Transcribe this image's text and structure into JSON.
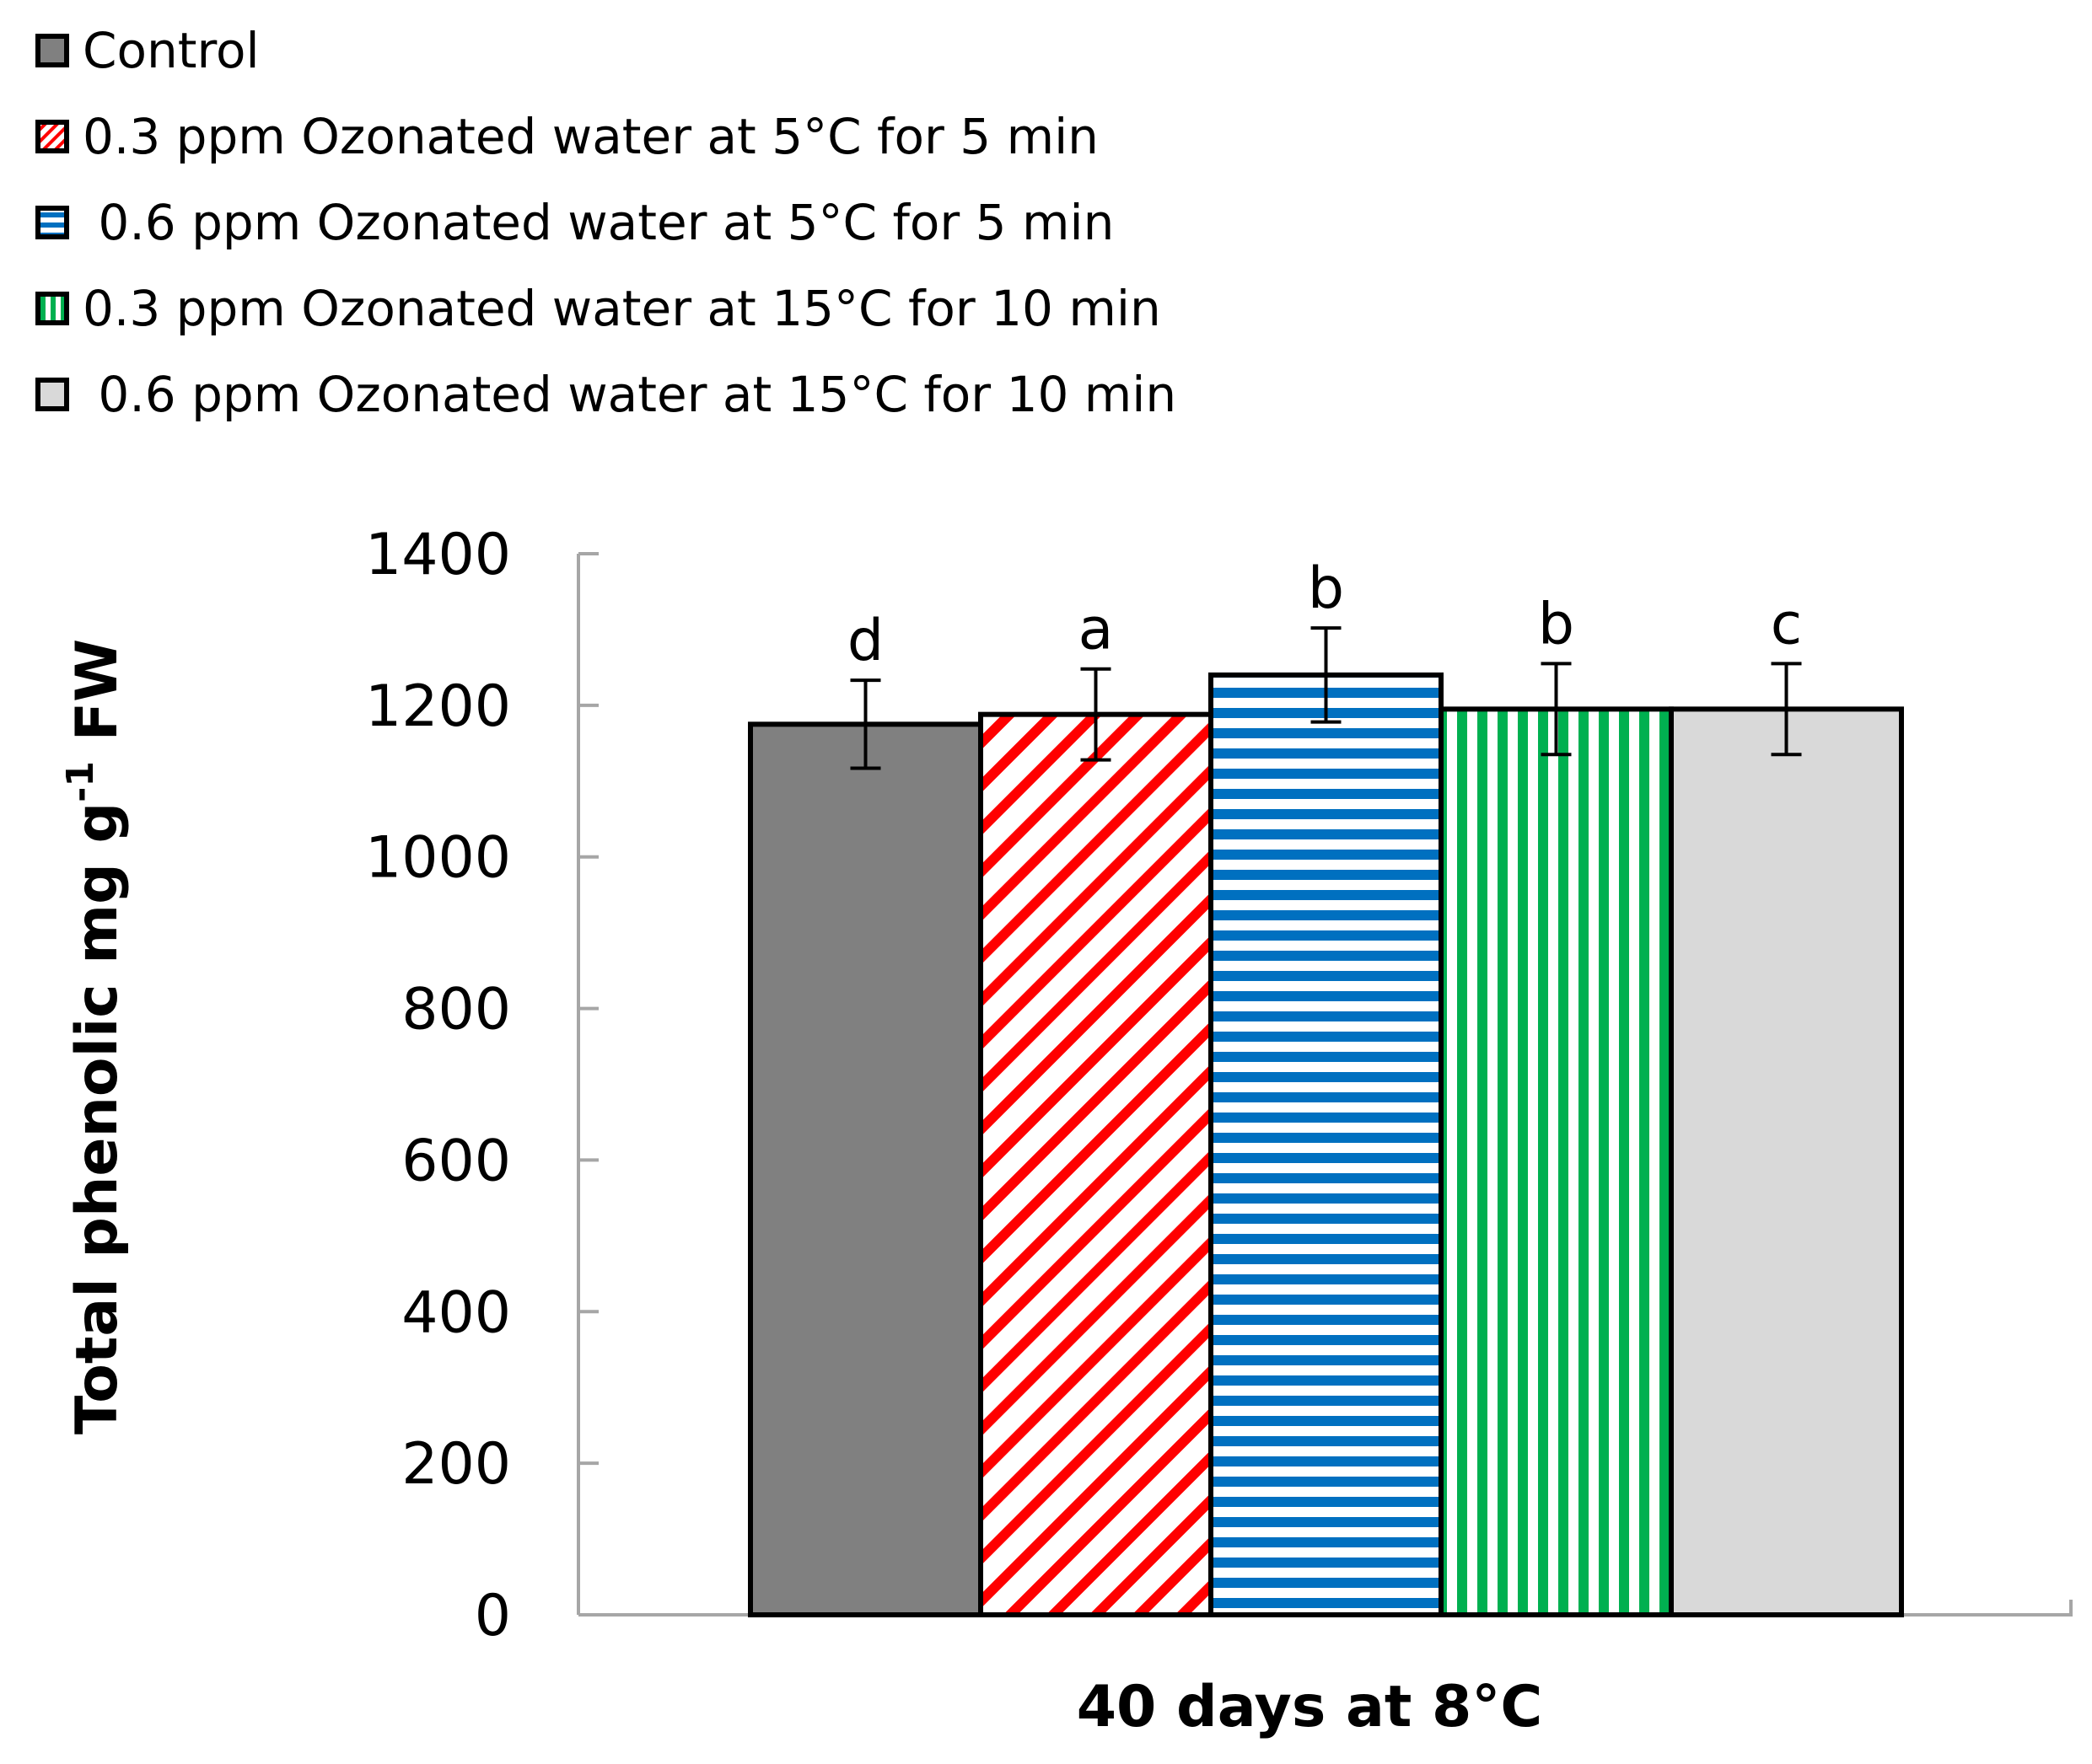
{
  "chart_data": {
    "type": "bar",
    "title": "",
    "xlabel": "40 days at 8°C",
    "ylabel": "Total phenolic mg g",
    "ylabel_superscript": "-1",
    "ylabel_suffix": " FW",
    "ylim": [
      0,
      1400
    ],
    "yticks": [
      0,
      200,
      400,
      600,
      800,
      1000,
      1200,
      1400
    ],
    "grid": false,
    "legend_position": "top-left",
    "series": [
      {
        "name": "Control",
        "value": 1175,
        "error": 58,
        "letter": "d",
        "color": "#808080",
        "pattern": "solid"
      },
      {
        "name": "0.3 ppm Ozonated water at 5°C for 5 min",
        "value": 1188,
        "error": 60,
        "letter": "a",
        "color": "#ff0000",
        "pattern": "diagonal"
      },
      {
        "name": " 0.6 ppm Ozonated water at 5°C for 5 min",
        "value": 1240,
        "error": 62,
        "letter": "b",
        "color": "#0070c0",
        "pattern": "horizontal"
      },
      {
        "name": "0.3 ppm Ozonated water at 15°C for 10 min",
        "value": 1195,
        "error": 60,
        "letter": "b",
        "color": "#00b050",
        "pattern": "vertical"
      },
      {
        "name": " 0.6 ppm Ozonated water at 15°C for 10 min",
        "value": 1195,
        "error": 60,
        "letter": "c",
        "color": "#d9d9d9",
        "pattern": "solid"
      }
    ]
  }
}
